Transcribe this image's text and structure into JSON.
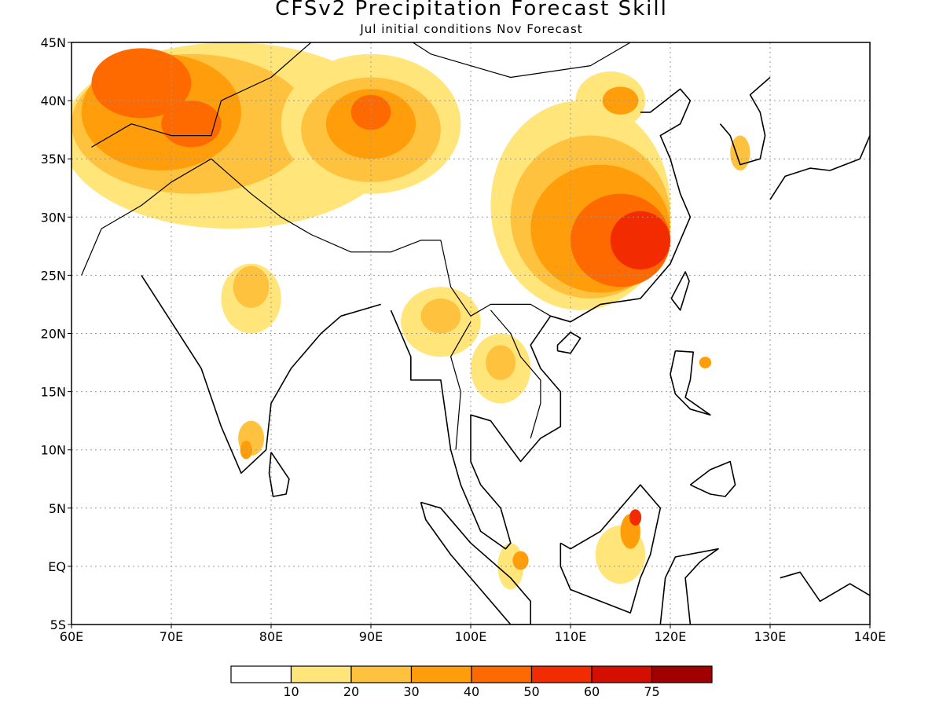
{
  "header": {
    "title": "CFSv2 Precipitation Forecast Skill",
    "subtitle": "Jul initial conditions   Nov Forecast"
  },
  "map": {
    "lon_range": [
      60,
      140
    ],
    "lat_range": [
      -5,
      45
    ],
    "lat_labels": [
      {
        "lat": 45,
        "label": "45N"
      },
      {
        "lat": 40,
        "label": "40N"
      },
      {
        "lat": 35,
        "label": "35N"
      },
      {
        "lat": 30,
        "label": "30N"
      },
      {
        "lat": 25,
        "label": "25N"
      },
      {
        "lat": 20,
        "label": "20N"
      },
      {
        "lat": 15,
        "label": "15N"
      },
      {
        "lat": 10,
        "label": "10N"
      },
      {
        "lat": 5,
        "label": "5N"
      },
      {
        "lat": 0,
        "label": "EQ"
      },
      {
        "lat": -5,
        "label": "5S"
      }
    ],
    "lon_labels": [
      {
        "lon": 60,
        "label": "60E"
      },
      {
        "lon": 70,
        "label": "70E"
      },
      {
        "lon": 80,
        "label": "80E"
      },
      {
        "lon": 90,
        "label": "90E"
      },
      {
        "lon": 100,
        "label": "100E"
      },
      {
        "lon": 110,
        "label": "110E"
      },
      {
        "lon": 120,
        "label": "120E"
      },
      {
        "lon": 130,
        "label": "130E"
      },
      {
        "lon": 140,
        "label": "140E"
      }
    ],
    "grid_lines": true
  },
  "colorbar": {
    "colors": [
      "#ffffff",
      "#ffe57a",
      "#ffc23e",
      "#ff9e0a",
      "#ff6a00",
      "#f22b00",
      "#d50f00",
      "#a00000"
    ],
    "labels": [
      "10",
      "20",
      "30",
      "40",
      "50",
      "60",
      "75"
    ]
  },
  "skill_regions": [
    {
      "level": 1,
      "lon": 76,
      "lat": 37,
      "rx": 17,
      "ry": 8
    },
    {
      "level": 2,
      "lon": 72,
      "lat": 38,
      "rx": 12,
      "ry": 6
    },
    {
      "level": 3,
      "lon": 69,
      "lat": 39,
      "rx": 8,
      "ry": 5
    },
    {
      "level": 4,
      "lon": 67,
      "lat": 41.5,
      "rx": 5,
      "ry": 3
    },
    {
      "level": 4,
      "lon": 72,
      "lat": 38,
      "rx": 3,
      "ry": 2
    },
    {
      "level": 1,
      "lon": 90,
      "lat": 38,
      "rx": 9,
      "ry": 6
    },
    {
      "level": 2,
      "lon": 90,
      "lat": 37.5,
      "rx": 7,
      "ry": 4.5
    },
    {
      "level": 3,
      "lon": 90,
      "lat": 38,
      "rx": 4.5,
      "ry": 3
    },
    {
      "level": 4,
      "lon": 90,
      "lat": 39,
      "rx": 2,
      "ry": 1.5
    },
    {
      "level": 1,
      "lon": 111,
      "lat": 31,
      "rx": 9,
      "ry": 9
    },
    {
      "level": 2,
      "lon": 112,
      "lat": 30,
      "rx": 8,
      "ry": 7
    },
    {
      "level": 3,
      "lon": 113,
      "lat": 29,
      "rx": 7,
      "ry": 5.5
    },
    {
      "level": 4,
      "lon": 115,
      "lat": 28,
      "rx": 5,
      "ry": 4
    },
    {
      "level": 5,
      "lon": 117,
      "lat": 28,
      "rx": 3,
      "ry": 2.5
    },
    {
      "level": 1,
      "lon": 114,
      "lat": 40,
      "rx": 3.5,
      "ry": 2.5
    },
    {
      "level": 3,
      "lon": 115,
      "lat": 40,
      "rx": 1.8,
      "ry": 1.2
    },
    {
      "level": 1,
      "lon": 78,
      "lat": 23,
      "rx": 3,
      "ry": 3
    },
    {
      "level": 2,
      "lon": 78,
      "lat": 24,
      "rx": 1.8,
      "ry": 1.8
    },
    {
      "level": 1,
      "lon": 97,
      "lat": 21,
      "rx": 4,
      "ry": 3
    },
    {
      "level": 2,
      "lon": 97,
      "lat": 21.5,
      "rx": 2,
      "ry": 1.5
    },
    {
      "level": 1,
      "lon": 103,
      "lat": 17,
      "rx": 3,
      "ry": 3
    },
    {
      "level": 2,
      "lon": 103,
      "lat": 17.5,
      "rx": 1.5,
      "ry": 1.5
    },
    {
      "level": 2,
      "lon": 78,
      "lat": 11,
      "rx": 1.3,
      "ry": 1.5
    },
    {
      "level": 3,
      "lon": 77.5,
      "lat": 10,
      "rx": 0.6,
      "ry": 0.8
    },
    {
      "level": 1,
      "lon": 104,
      "lat": 0,
      "rx": 1.3,
      "ry": 2
    },
    {
      "level": 3,
      "lon": 105,
      "lat": 0.5,
      "rx": 0.8,
      "ry": 0.8
    },
    {
      "level": 1,
      "lon": 115,
      "lat": 1,
      "rx": 2.5,
      "ry": 2.5
    },
    {
      "level": 3,
      "lon": 116,
      "lat": 3,
      "rx": 1,
      "ry": 1.5
    },
    {
      "level": 5,
      "lon": 116.5,
      "lat": 4.2,
      "rx": 0.6,
      "ry": 0.7
    },
    {
      "level": 2,
      "lon": 127,
      "lat": 35.5,
      "rx": 1,
      "ry": 1.5
    },
    {
      "level": 3,
      "lon": 123.5,
      "lat": 17.5,
      "rx": 0.6,
      "ry": 0.5
    }
  ],
  "coastlines": [
    {
      "name": "indian-coast",
      "points": [
        [
          67,
          25
        ],
        [
          70,
          21
        ],
        [
          73,
          17
        ],
        [
          75,
          12
        ],
        [
          77,
          8
        ],
        [
          79.5,
          10
        ],
        [
          80,
          14
        ],
        [
          82,
          17
        ],
        [
          85,
          20
        ],
        [
          87,
          21.5
        ],
        [
          89,
          22
        ],
        [
          91,
          22.5
        ]
      ]
    },
    {
      "name": "indochina-coast",
      "points": [
        [
          92,
          22
        ],
        [
          94,
          18
        ],
        [
          94,
          16
        ],
        [
          97,
          16
        ],
        [
          98,
          10
        ],
        [
          99,
          7
        ],
        [
          101,
          3
        ],
        [
          103.5,
          1.5
        ],
        [
          104,
          2
        ],
        [
          103,
          5
        ],
        [
          101,
          7
        ],
        [
          100,
          9
        ],
        [
          100,
          13
        ],
        [
          102,
          12.5
        ],
        [
          105,
          9
        ],
        [
          107,
          11
        ],
        [
          109,
          12
        ],
        [
          109,
          15
        ],
        [
          107,
          17
        ],
        [
          106,
          19
        ],
        [
          108,
          21.5
        ],
        [
          110,
          21
        ],
        [
          113,
          22.5
        ],
        [
          117,
          23
        ],
        [
          120,
          26
        ],
        [
          122,
          30
        ],
        [
          121,
          32
        ],
        [
          120,
          35
        ],
        [
          119,
          37
        ],
        [
          121,
          38
        ],
        [
          122,
          40
        ],
        [
          121,
          41
        ],
        [
          118,
          39
        ],
        [
          117,
          39
        ]
      ]
    },
    {
      "name": "korea",
      "points": [
        [
          125,
          38
        ],
        [
          126,
          37
        ],
        [
          127,
          34.5
        ],
        [
          129,
          35
        ],
        [
          129.5,
          37
        ],
        [
          129,
          39
        ],
        [
          128,
          40.5
        ],
        [
          130,
          42
        ]
      ]
    },
    {
      "name": "borneo",
      "points": [
        [
          109,
          2
        ],
        [
          110,
          1.5
        ],
        [
          113,
          3
        ],
        [
          115,
          5
        ],
        [
          117,
          7
        ],
        [
          119,
          5
        ],
        [
          118,
          1
        ],
        [
          117,
          -1
        ],
        [
          116,
          -4
        ],
        [
          113,
          -3
        ],
        [
          110,
          -2
        ],
        [
          109,
          0
        ],
        [
          109,
          2
        ]
      ]
    },
    {
      "name": "sumatra",
      "points": [
        [
          95,
          5.5
        ],
        [
          97,
          5
        ],
        [
          100,
          2
        ],
        [
          104,
          -1
        ],
        [
          106,
          -3
        ],
        [
          106,
          -5
        ],
        [
          104,
          -5
        ],
        [
          101,
          -2
        ],
        [
          98,
          1
        ],
        [
          95.5,
          4
        ],
        [
          95,
          5.5
        ]
      ]
    },
    {
      "name": "sri-lanka",
      "points": [
        [
          80,
          9.8
        ],
        [
          81.8,
          7.5
        ],
        [
          81.5,
          6.2
        ],
        [
          80.2,
          6
        ],
        [
          79.8,
          8
        ],
        [
          80,
          9.8
        ]
      ]
    },
    {
      "name": "hainan",
      "points": [
        [
          108.7,
          18.5
        ],
        [
          110,
          18.3
        ],
        [
          111,
          19.6
        ],
        [
          110,
          20.1
        ],
        [
          108.7,
          19
        ],
        [
          108.7,
          18.5
        ]
      ]
    },
    {
      "name": "taiwan",
      "points": [
        [
          120.1,
          23
        ],
        [
          121,
          22
        ],
        [
          121.9,
          24.5
        ],
        [
          121.5,
          25.3
        ],
        [
          120.1,
          23
        ]
      ]
    },
    {
      "name": "luzon",
      "points": [
        [
          120.5,
          18.5
        ],
        [
          122.3,
          18.4
        ],
        [
          122,
          16
        ],
        [
          121.5,
          14.5
        ],
        [
          124,
          13
        ],
        [
          122,
          13.5
        ],
        [
          120.5,
          14.8
        ],
        [
          120,
          16.5
        ],
        [
          120.5,
          18.5
        ]
      ]
    },
    {
      "name": "mindanao",
      "points": [
        [
          122,
          7
        ],
        [
          124,
          8.3
        ],
        [
          126,
          9
        ],
        [
          126.5,
          7
        ],
        [
          125.5,
          6
        ],
        [
          124,
          6.2
        ],
        [
          122,
          7
        ]
      ]
    },
    {
      "name": "sulawesi",
      "points": [
        [
          119,
          -5
        ],
        [
          119.5,
          -1
        ],
        [
          120.5,
          0.8
        ],
        [
          124.8,
          1.5
        ],
        [
          123,
          0.4
        ],
        [
          121.5,
          -1
        ],
        [
          122,
          -5
        ]
      ]
    },
    {
      "name": "japan",
      "points": [
        [
          130,
          31.5
        ],
        [
          131.5,
          33.5
        ],
        [
          134,
          34.2
        ],
        [
          136,
          34
        ],
        [
          139,
          35
        ],
        [
          140,
          37
        ]
      ]
    },
    {
      "name": "new-guinea",
      "points": [
        [
          131,
          -1
        ],
        [
          133,
          -0.5
        ],
        [
          135,
          -3
        ],
        [
          138,
          -1.5
        ],
        [
          140,
          -2.5
        ]
      ]
    }
  ],
  "borders": [
    {
      "name": "himalaya-border",
      "points": [
        [
          74,
          35
        ],
        [
          78,
          32
        ],
        [
          81,
          30
        ],
        [
          84,
          28.5
        ],
        [
          88,
          27
        ],
        [
          92,
          27
        ],
        [
          95,
          28
        ],
        [
          97,
          28
        ]
      ]
    },
    {
      "name": "china-mongolia-border",
      "points": [
        [
          87,
          49
        ],
        [
          96,
          44
        ],
        [
          104,
          42
        ],
        [
          112,
          43
        ],
        [
          116,
          45
        ]
      ]
    },
    {
      "name": "central-asia-border",
      "points": [
        [
          62,
          36
        ],
        [
          66,
          38
        ],
        [
          70,
          37
        ],
        [
          74,
          37
        ],
        [
          75,
          40
        ],
        [
          80,
          42
        ],
        [
          84,
          45
        ]
      ]
    },
    {
      "name": "china-se-asia-border",
      "points": [
        [
          97,
          28
        ],
        [
          98,
          24
        ],
        [
          100,
          21.5
        ],
        [
          102,
          22.5
        ],
        [
          106,
          22.5
        ],
        [
          108,
          21.5
        ]
      ]
    },
    {
      "name": "pakistan-border",
      "points": [
        [
          61,
          25
        ],
        [
          63,
          29
        ],
        [
          67,
          31
        ],
        [
          70,
          33
        ],
        [
          74,
          35
        ]
      ]
    },
    {
      "name": "myanmar-thailand-border",
      "points": [
        [
          100,
          21
        ],
        [
          98,
          18
        ],
        [
          99,
          15
        ],
        [
          98.5,
          10
        ]
      ]
    },
    {
      "name": "laos-vietnam-border",
      "points": [
        [
          102,
          22
        ],
        [
          104,
          20
        ],
        [
          105,
          18
        ],
        [
          107,
          16
        ],
        [
          107,
          14
        ],
        [
          106,
          11
        ]
      ]
    }
  ]
}
